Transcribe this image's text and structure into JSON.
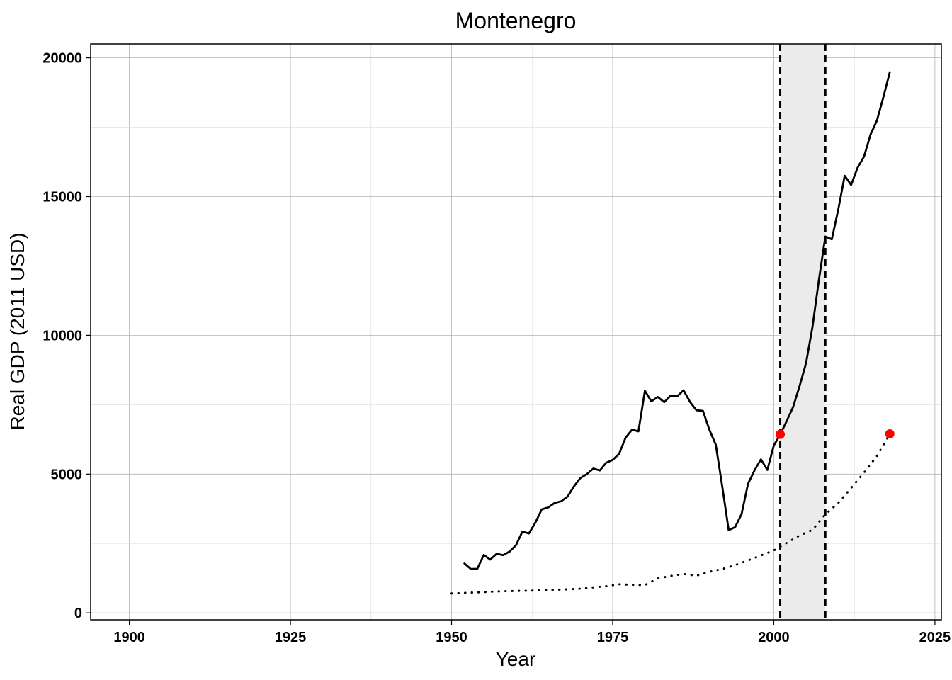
{
  "chart_data": {
    "type": "line",
    "title": "Montenegro",
    "xlabel": "Year",
    "ylabel": "Real GDP (2011 USD)",
    "xlim": [
      1894,
      2026
    ],
    "ylim": [
      -250,
      20500
    ],
    "x_ticks": [
      1900,
      1925,
      1950,
      1975,
      2000,
      2025
    ],
    "y_ticks": [
      0,
      5000,
      10000,
      15000,
      20000
    ],
    "x_tick_labels": [
      "1900",
      "1925",
      "1950",
      "1975",
      "2000",
      "2025"
    ],
    "y_tick_labels": [
      "0",
      "5000",
      "10000",
      "15000",
      "20000"
    ],
    "grid": true,
    "legend": "none",
    "shaded_region": {
      "x0": 2001,
      "x1": 2008,
      "color": "#ebebeb"
    },
    "vlines": [
      {
        "x": 2001,
        "style": "dashed",
        "color": "#000000"
      },
      {
        "x": 2008,
        "style": "dashed",
        "color": "#000000"
      }
    ],
    "series": [
      {
        "style": "solid",
        "color": "#000000",
        "x": [
          1952,
          1953,
          1954,
          1955,
          1956,
          1957,
          1958,
          1959,
          1960,
          1961,
          1962,
          1963,
          1964,
          1965,
          1966,
          1967,
          1968,
          1969,
          1970,
          1971,
          1972,
          1973,
          1974,
          1975,
          1976,
          1977,
          1978,
          1979,
          1980,
          1981,
          1982,
          1983,
          1984,
          1985,
          1986,
          1987,
          1988,
          1989,
          1990,
          1991,
          1992,
          1993,
          1994,
          1995,
          1996,
          1997,
          1998,
          1999,
          2000,
          2001,
          2002,
          2003,
          2004,
          2005,
          2006,
          2007,
          2008,
          2009,
          2010,
          2011,
          2012,
          2013,
          2014,
          2015,
          2016,
          2017,
          2018
        ],
        "y": [
          1780,
          1580,
          1590,
          2090,
          1920,
          2130,
          2080,
          2210,
          2440,
          2930,
          2860,
          3250,
          3730,
          3800,
          3960,
          4020,
          4190,
          4560,
          4860,
          5000,
          5200,
          5130,
          5410,
          5510,
          5730,
          6310,
          6600,
          6540,
          8000,
          7620,
          7780,
          7590,
          7830,
          7800,
          8020,
          7600,
          7300,
          7280,
          6600,
          6060,
          4560,
          2980,
          3090,
          3560,
          4650,
          5130,
          5530,
          5150,
          6030,
          6430,
          6910,
          7420,
          8170,
          8990,
          10300,
          12000,
          13560,
          13460,
          14530,
          15750,
          15420,
          16040,
          16440,
          17230,
          17740,
          18580,
          19480
        ]
      },
      {
        "style": "dotted",
        "color": "#000000",
        "x": [
          1950,
          1952,
          1954,
          1956,
          1958,
          1960,
          1962,
          1964,
          1966,
          1968,
          1970,
          1972,
          1974,
          1976,
          1978,
          1980,
          1982,
          1984,
          1986,
          1988,
          1990,
          1992,
          1994,
          1996,
          1998,
          2000,
          2002,
          2004,
          2006,
          2008,
          2010,
          2012,
          2014,
          2016,
          2018
        ],
        "y": [
          700,
          720,
          740,
          760,
          780,
          790,
          800,
          810,
          830,
          850,
          870,
          920,
          960,
          1030,
          1010,
          1000,
          1240,
          1330,
          1400,
          1340,
          1480,
          1580,
          1720,
          1890,
          2070,
          2250,
          2520,
          2790,
          2990,
          3550,
          3960,
          4500,
          5050,
          5650,
          6450
        ]
      }
    ],
    "highlight_points": [
      {
        "x": 2001,
        "y": 6430,
        "color": "#ff0000"
      },
      {
        "x": 2018,
        "y": 6450,
        "color": "#ff0000"
      }
    ]
  }
}
